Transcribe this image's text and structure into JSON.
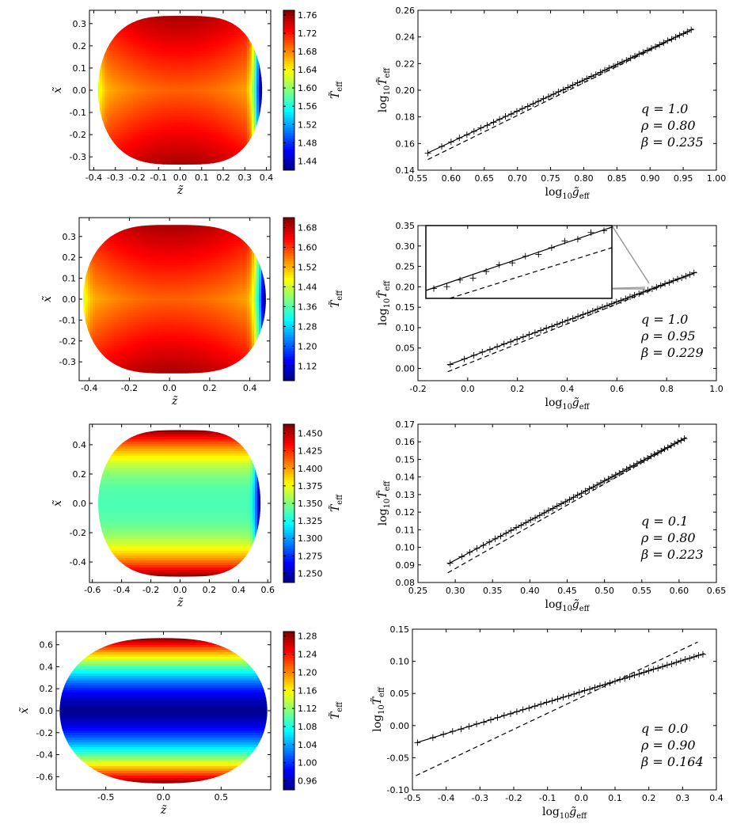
{
  "chart_data": [
    {
      "type": "heatmap",
      "panel": "map",
      "row": 1,
      "title": "",
      "xlabel": "z̃",
      "ylabel": "x̃",
      "xlim": [
        -0.42,
        0.42
      ],
      "ylim": [
        -0.36,
        0.36
      ],
      "xticks": [
        -0.4,
        -0.3,
        -0.2,
        -0.1,
        0.0,
        0.1,
        0.2,
        0.3,
        0.4
      ],
      "xtick_labels": [
        "-0.4",
        "-0.3",
        "-0.2",
        "-0.1",
        "0.0",
        "0.1",
        "0.2",
        "0.3",
        "0.4"
      ],
      "yticks": [
        -0.3,
        -0.2,
        -0.1,
        0.0,
        0.1,
        0.2,
        0.3
      ],
      "ytick_labels": [
        "-0.3",
        "-0.2",
        "-0.1",
        "0.0",
        "0.1",
        "0.2",
        "0.3"
      ],
      "shape": {
        "zmin": -0.38,
        "zmax": 0.38,
        "xhalf": 0.335
      },
      "colorbar": {
        "label": "T̃eff",
        "range": [
          1.42,
          1.77
        ],
        "ticks": [
          1.44,
          1.48,
          1.52,
          1.56,
          1.6,
          1.64,
          1.68,
          1.72,
          1.76
        ],
        "tick_labels": [
          "1.44",
          "1.48",
          "1.52",
          "1.56",
          "1.60",
          "1.64",
          "1.68",
          "1.72",
          "1.76"
        ]
      },
      "field": "gravity_darkened"
    },
    {
      "type": "scatter",
      "panel": "fit",
      "row": 1,
      "xlabel": "log10 g̃eff",
      "ylabel": "log10 T̃eff",
      "xlim": [
        0.55,
        1.0
      ],
      "ylim": [
        0.14,
        0.26
      ],
      "xticks": [
        0.55,
        0.6,
        0.65,
        0.7,
        0.75,
        0.8,
        0.85,
        0.9,
        0.95,
        1.0
      ],
      "xtick_labels": [
        "0.55",
        "0.60",
        "0.65",
        "0.70",
        "0.75",
        "0.80",
        "0.85",
        "0.90",
        "0.95",
        "1.00"
      ],
      "yticks": [
        0.14,
        0.16,
        0.18,
        0.2,
        0.22,
        0.24,
        0.26
      ],
      "ytick_labels": [
        "0.14",
        "0.16",
        "0.18",
        "0.20",
        "0.22",
        "0.24",
        "0.26"
      ],
      "points": {
        "x_start": 0.565,
        "x_end": 0.962,
        "count": 52
      },
      "fit_line": {
        "x": [
          0.565,
          0.965
        ],
        "y": [
          0.153,
          0.246
        ]
      },
      "dashed_line": {
        "x": [
          0.565,
          0.965
        ],
        "y": [
          0.148,
          0.246
        ]
      },
      "annotations": [
        "q = 1.0",
        "ρ = 0.80",
        "β = 0.235"
      ]
    },
    {
      "type": "heatmap",
      "panel": "map",
      "row": 2,
      "xlabel": "z̃",
      "ylabel": "x̃",
      "xlim": [
        -0.45,
        0.5
      ],
      "ylim": [
        -0.39,
        0.39
      ],
      "xticks": [
        -0.4,
        -0.2,
        0.0,
        0.2,
        0.4
      ],
      "xtick_labels": [
        "-0.4",
        "-0.2",
        "0.0",
        "0.2",
        "0.4"
      ],
      "yticks": [
        -0.3,
        -0.2,
        -0.1,
        0.0,
        0.1,
        0.2,
        0.3
      ],
      "ytick_labels": [
        "-0.3",
        "-0.2",
        "-0.1",
        "0.0",
        "0.1",
        "0.2",
        "0.3"
      ],
      "shape": {
        "zmin": -0.43,
        "zmax": 0.48,
        "xhalf": 0.355
      },
      "colorbar": {
        "label": "T̃eff",
        "range": [
          1.06,
          1.72
        ],
        "ticks": [
          1.12,
          1.2,
          1.28,
          1.36,
          1.44,
          1.52,
          1.6,
          1.68
        ],
        "tick_labels": [
          "1.12",
          "1.20",
          "1.28",
          "1.36",
          "1.44",
          "1.52",
          "1.60",
          "1.68"
        ]
      },
      "field": "gravity_darkened"
    },
    {
      "type": "scatter",
      "panel": "fit",
      "row": 2,
      "xlabel": "log10 g̃eff",
      "ylabel": "log10 T̃eff",
      "xlim": [
        -0.2,
        1.0
      ],
      "ylim": [
        -0.03,
        0.35
      ],
      "xticks": [
        -0.2,
        0.0,
        0.2,
        0.4,
        0.6,
        0.8,
        1.0
      ],
      "xtick_labels": [
        "-0.2",
        "0.0",
        "0.2",
        "0.4",
        "0.6",
        "0.8",
        "1.0"
      ],
      "yticks": [
        0.0,
        0.05,
        0.1,
        0.15,
        0.2,
        0.25,
        0.3,
        0.35
      ],
      "ytick_labels": [
        "0.00",
        "0.05",
        "0.10",
        "0.15",
        "0.20",
        "0.25",
        "0.30",
        "0.35"
      ],
      "points": {
        "x_start": -0.07,
        "x_end": 0.91,
        "count": 46
      },
      "fit_line": {
        "x": [
          -0.08,
          0.92
        ],
        "y": [
          0.008,
          0.236
        ]
      },
      "dashed_line": {
        "x": [
          -0.08,
          0.92
        ],
        "y": [
          -0.008,
          0.236
        ]
      },
      "annotations": [
        "q = 1.0",
        "ρ = 0.95",
        "β = 0.229"
      ],
      "inset": "zoom of lower-left data segment"
    },
    {
      "type": "heatmap",
      "panel": "map",
      "row": 3,
      "xlabel": "z̃",
      "ylabel": "x̃",
      "xlim": [
        -0.62,
        0.62
      ],
      "ylim": [
        -0.54,
        0.54
      ],
      "xticks": [
        -0.6,
        -0.4,
        -0.2,
        0.0,
        0.2,
        0.4,
        0.6
      ],
      "xtick_labels": [
        "-0.6",
        "-0.4",
        "-0.2",
        "0.0",
        "0.2",
        "0.4",
        "0.6"
      ],
      "yticks": [
        -0.4,
        -0.2,
        0.0,
        0.2,
        0.4
      ],
      "ytick_labels": [
        "-0.4",
        "-0.2",
        "0.0",
        "0.2",
        "0.4"
      ],
      "shape": {
        "zmin": -0.56,
        "zmax": 0.55,
        "xhalf": 0.5
      },
      "colorbar": {
        "label": "T̃eff",
        "range": [
          1.237,
          1.463
        ],
        "ticks": [
          1.25,
          1.275,
          1.3,
          1.325,
          1.35,
          1.375,
          1.4,
          1.425,
          1.45
        ],
        "tick_labels": [
          "1.250",
          "1.275",
          "1.300",
          "1.325",
          "1.350",
          "1.375",
          "1.400",
          "1.425",
          "1.450"
        ]
      },
      "field": "latitudinal_with_tip"
    },
    {
      "type": "scatter",
      "panel": "fit",
      "row": 3,
      "xlabel": "log10 g̃eff",
      "ylabel": "log10 T̃eff",
      "xlim": [
        0.25,
        0.65
      ],
      "ylim": [
        0.08,
        0.17
      ],
      "xticks": [
        0.25,
        0.3,
        0.35,
        0.4,
        0.45,
        0.5,
        0.55,
        0.6,
        0.65
      ],
      "xtick_labels": [
        "0.25",
        "0.30",
        "0.35",
        "0.40",
        "0.45",
        "0.50",
        "0.55",
        "0.60",
        "0.65"
      ],
      "yticks": [
        0.08,
        0.09,
        0.1,
        0.11,
        0.12,
        0.13,
        0.14,
        0.15,
        0.16,
        0.17
      ],
      "ytick_labels": [
        "0.08",
        "0.09",
        "0.10",
        "0.11",
        "0.12",
        "0.13",
        "0.14",
        "0.15",
        "0.16",
        "0.17"
      ],
      "points": {
        "x_start": 0.293,
        "x_end": 0.607,
        "count": 55
      },
      "fit_line": {
        "x": [
          0.29,
          0.61
        ],
        "y": [
          0.0905,
          0.1625
        ]
      },
      "dashed_line": {
        "x": [
          0.29,
          0.61
        ],
        "y": [
          0.0855,
          0.1625
        ]
      },
      "annotations": [
        "q = 0.1",
        "ρ = 0.80",
        "β = 0.223"
      ]
    },
    {
      "type": "heatmap",
      "panel": "map",
      "row": 4,
      "xlabel": "z̃",
      "ylabel": "x̃",
      "xlim": [
        -0.93,
        0.93
      ],
      "ylim": [
        -0.72,
        0.72
      ],
      "xticks": [
        -0.5,
        0.0,
        0.5
      ],
      "xtick_labels": [
        "-0.5",
        "0.0",
        "0.5"
      ],
      "yticks": [
        -0.6,
        -0.4,
        -0.2,
        0.0,
        0.2,
        0.4,
        0.6
      ],
      "ytick_labels": [
        "-0.6",
        "-0.4",
        "-0.2",
        "0.0",
        "0.2",
        "0.4",
        "0.6"
      ],
      "shape": {
        "zmin": -0.9,
        "zmax": 0.9,
        "xhalf": 0.66
      },
      "colorbar": {
        "label": "T̃eff",
        "range": [
          0.94,
          1.29
        ],
        "ticks": [
          0.96,
          1.0,
          1.04,
          1.08,
          1.12,
          1.16,
          1.2,
          1.24,
          1.28
        ],
        "tick_labels": [
          "0.96",
          "1.00",
          "1.04",
          "1.08",
          "1.12",
          "1.16",
          "1.20",
          "1.24",
          "1.28"
        ]
      },
      "field": "latitudinal"
    },
    {
      "type": "scatter",
      "panel": "fit",
      "row": 4,
      "xlabel": "log10 g̃eff",
      "ylabel": "log10 T̃eff",
      "xlim": [
        -0.5,
        0.4
      ],
      "ylim": [
        -0.1,
        0.15
      ],
      "xticks": [
        -0.5,
        -0.4,
        -0.3,
        -0.2,
        -0.1,
        0.0,
        0.1,
        0.2,
        0.3,
        0.4
      ],
      "xtick_labels": [
        "-0.5",
        "-0.4",
        "-0.3",
        "-0.2",
        "-0.1",
        "0.0",
        "0.1",
        "0.2",
        "0.3",
        "0.4"
      ],
      "yticks": [
        -0.1,
        -0.05,
        0.0,
        0.05,
        0.1,
        0.15
      ],
      "ytick_labels": [
        "-0.10",
        "-0.05",
        "0.00",
        "0.05",
        "0.10",
        "0.15"
      ],
      "points": {
        "x_start": -0.485,
        "x_end": 0.36,
        "count": 50
      },
      "fit_line": {
        "x": [
          -0.49,
          0.365
        ],
        "y": [
          -0.027,
          0.112
        ]
      },
      "dashed_line": {
        "x": [
          -0.49,
          0.345
        ],
        "y": [
          -0.078,
          0.13
        ]
      },
      "annotations": [
        "q = 0.0",
        "ρ = 0.90",
        "β = 0.164"
      ]
    }
  ],
  "colormap": [
    "#00007f",
    "#0000ff",
    "#007fff",
    "#00ffff",
    "#7fff7f",
    "#ffff00",
    "#ff7f00",
    "#ff0000",
    "#7f0000"
  ]
}
